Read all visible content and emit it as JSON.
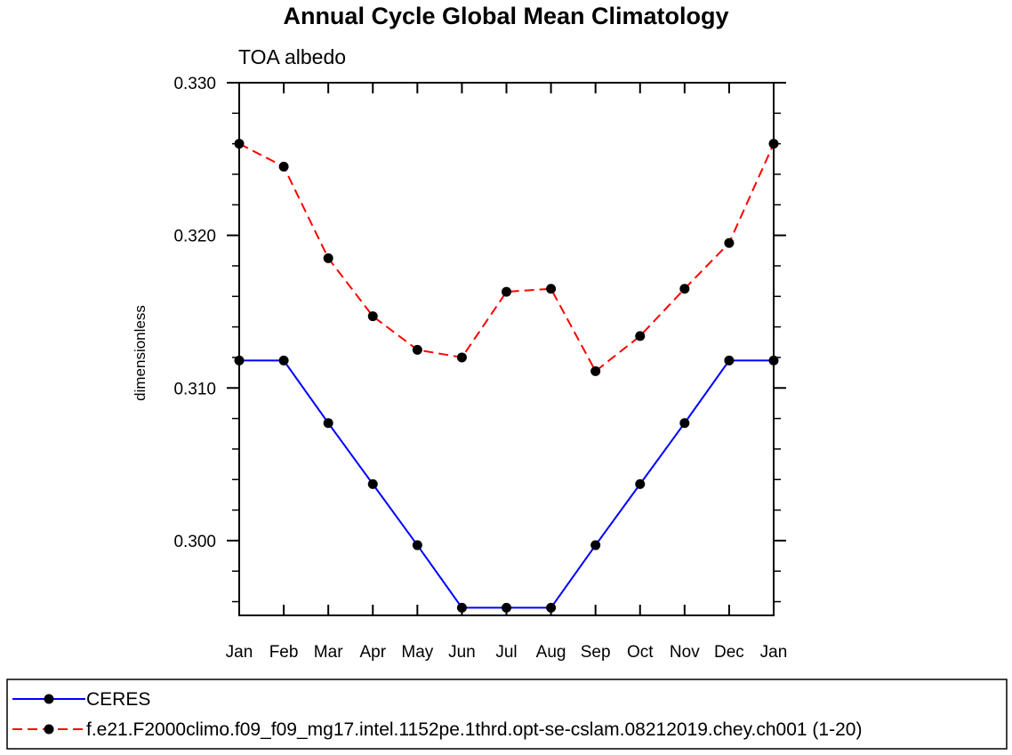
{
  "chart_data": {
    "type": "line",
    "title": "Annual Cycle Global Mean Climatology",
    "subtitle": "TOA albedo",
    "xlabel": "",
    "ylabel": "dimensionless",
    "categories": [
      "Jan",
      "Feb",
      "Mar",
      "Apr",
      "May",
      "Jun",
      "Jul",
      "Aug",
      "Sep",
      "Oct",
      "Nov",
      "Dec",
      "Jan"
    ],
    "ylim": [
      0.2951,
      0.33
    ],
    "yticks": [
      0.3,
      0.31,
      0.32,
      0.33
    ],
    "ytick_labels": [
      "0.300",
      "0.310",
      "0.320",
      "0.330"
    ],
    "grid": false,
    "legend_position": "bottom",
    "series": [
      {
        "name": "CERES",
        "color": "#0000ff",
        "style": "solid",
        "marker": "filled-circle",
        "values": [
          0.3118,
          0.3118,
          0.3077,
          0.3037,
          0.2997,
          0.2956,
          0.2956,
          0.2956,
          0.2997,
          0.3037,
          0.3077,
          0.3118,
          0.3118
        ]
      },
      {
        "name": "f.e21.F2000climo.f09_f09_mg17.intel.1152pe.1thrd.opt-se-cslam.08212019.chey.ch001 (1-20)",
        "color": "#ff0000",
        "style": "dashed",
        "marker": "filled-circle",
        "values": [
          0.326,
          0.3245,
          0.3185,
          0.3147,
          0.3125,
          0.312,
          0.3163,
          0.3165,
          0.3111,
          0.3134,
          0.3165,
          0.3195,
          0.326
        ]
      }
    ]
  }
}
